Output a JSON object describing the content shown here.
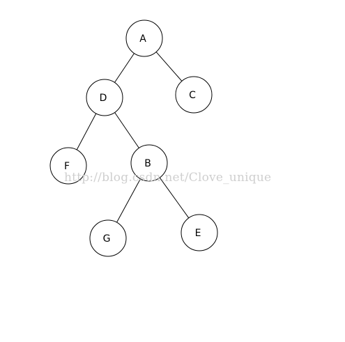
{
  "diagram": {
    "type": "binary-tree",
    "nodes": [
      {
        "id": "A",
        "label": "A"
      },
      {
        "id": "D",
        "label": "D"
      },
      {
        "id": "C",
        "label": "C"
      },
      {
        "id": "F",
        "label": "F"
      },
      {
        "id": "B",
        "label": "B"
      },
      {
        "id": "G",
        "label": "G"
      },
      {
        "id": "E",
        "label": "E"
      }
    ],
    "edges": [
      {
        "from": "A",
        "to": "D"
      },
      {
        "from": "A",
        "to": "C"
      },
      {
        "from": "D",
        "to": "F"
      },
      {
        "from": "D",
        "to": "B"
      },
      {
        "from": "B",
        "to": "G"
      },
      {
        "from": "B",
        "to": "E"
      }
    ]
  },
  "watermark": {
    "text": "http://blog.csdn.net/Clove_unique"
  }
}
